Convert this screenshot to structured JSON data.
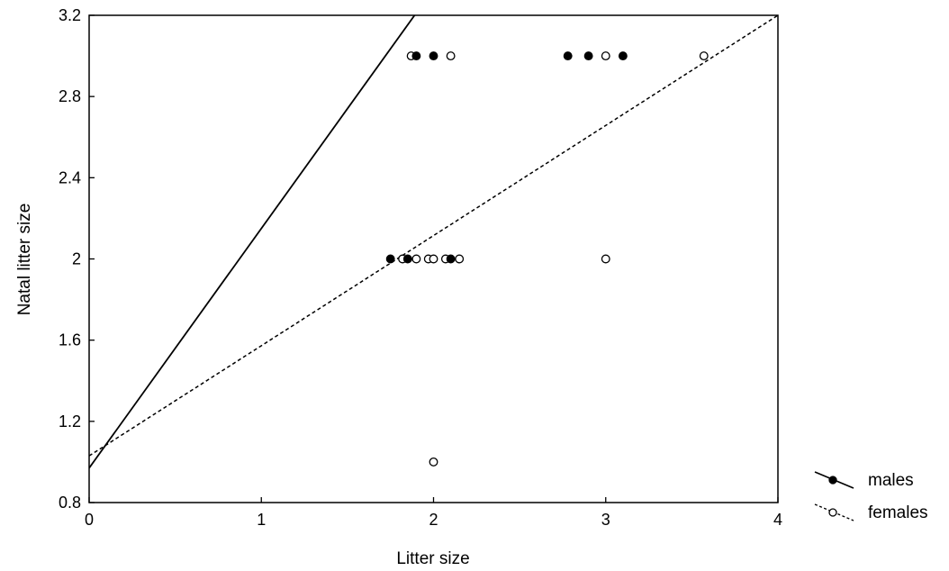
{
  "chart_data": {
    "type": "scatter",
    "title": "",
    "xlabel": "Litter size",
    "ylabel": "Natal litter size",
    "xlim": [
      0,
      4
    ],
    "ylim": [
      0.8,
      3.2
    ],
    "x_ticks": [
      0,
      1,
      2,
      3,
      4
    ],
    "y_ticks": [
      0.8,
      1.2,
      1.6,
      2.0,
      2.4,
      2.8,
      3.2
    ],
    "y_tick_labels": [
      "0.8",
      "1.2",
      "1.6",
      "2",
      "2.4",
      "2.8",
      "3.2"
    ],
    "grid": false,
    "legend_position": "bottom-right, outside plot",
    "series": [
      {
        "name": "males",
        "marker": "filled-circle",
        "line_style": "solid",
        "color": "#000000",
        "points": [
          {
            "x": 1.75,
            "y": 2
          },
          {
            "x": 1.85,
            "y": 2
          },
          {
            "x": 2.1,
            "y": 2
          },
          {
            "x": 1.9,
            "y": 3
          },
          {
            "x": 2.0,
            "y": 3
          },
          {
            "x": 2.78,
            "y": 3
          },
          {
            "x": 2.9,
            "y": 3
          },
          {
            "x": 3.1,
            "y": 3
          }
        ],
        "fit": {
          "intercept": 0.97,
          "slope": 1.18
        }
      },
      {
        "name": "females",
        "marker": "open-circle",
        "line_style": "dashed",
        "color": "#000000",
        "points": [
          {
            "x": 1.82,
            "y": 2
          },
          {
            "x": 1.9,
            "y": 2
          },
          {
            "x": 1.97,
            "y": 2
          },
          {
            "x": 2.0,
            "y": 2
          },
          {
            "x": 2.07,
            "y": 2
          },
          {
            "x": 2.15,
            "y": 2
          },
          {
            "x": 3.0,
            "y": 2
          },
          {
            "x": 1.87,
            "y": 3
          },
          {
            "x": 2.1,
            "y": 3
          },
          {
            "x": 3.0,
            "y": 3
          },
          {
            "x": 3.57,
            "y": 3
          },
          {
            "x": 2.0,
            "y": 1
          }
        ],
        "fit": {
          "intercept": 1.03,
          "slope": 0.5425
        }
      }
    ]
  }
}
